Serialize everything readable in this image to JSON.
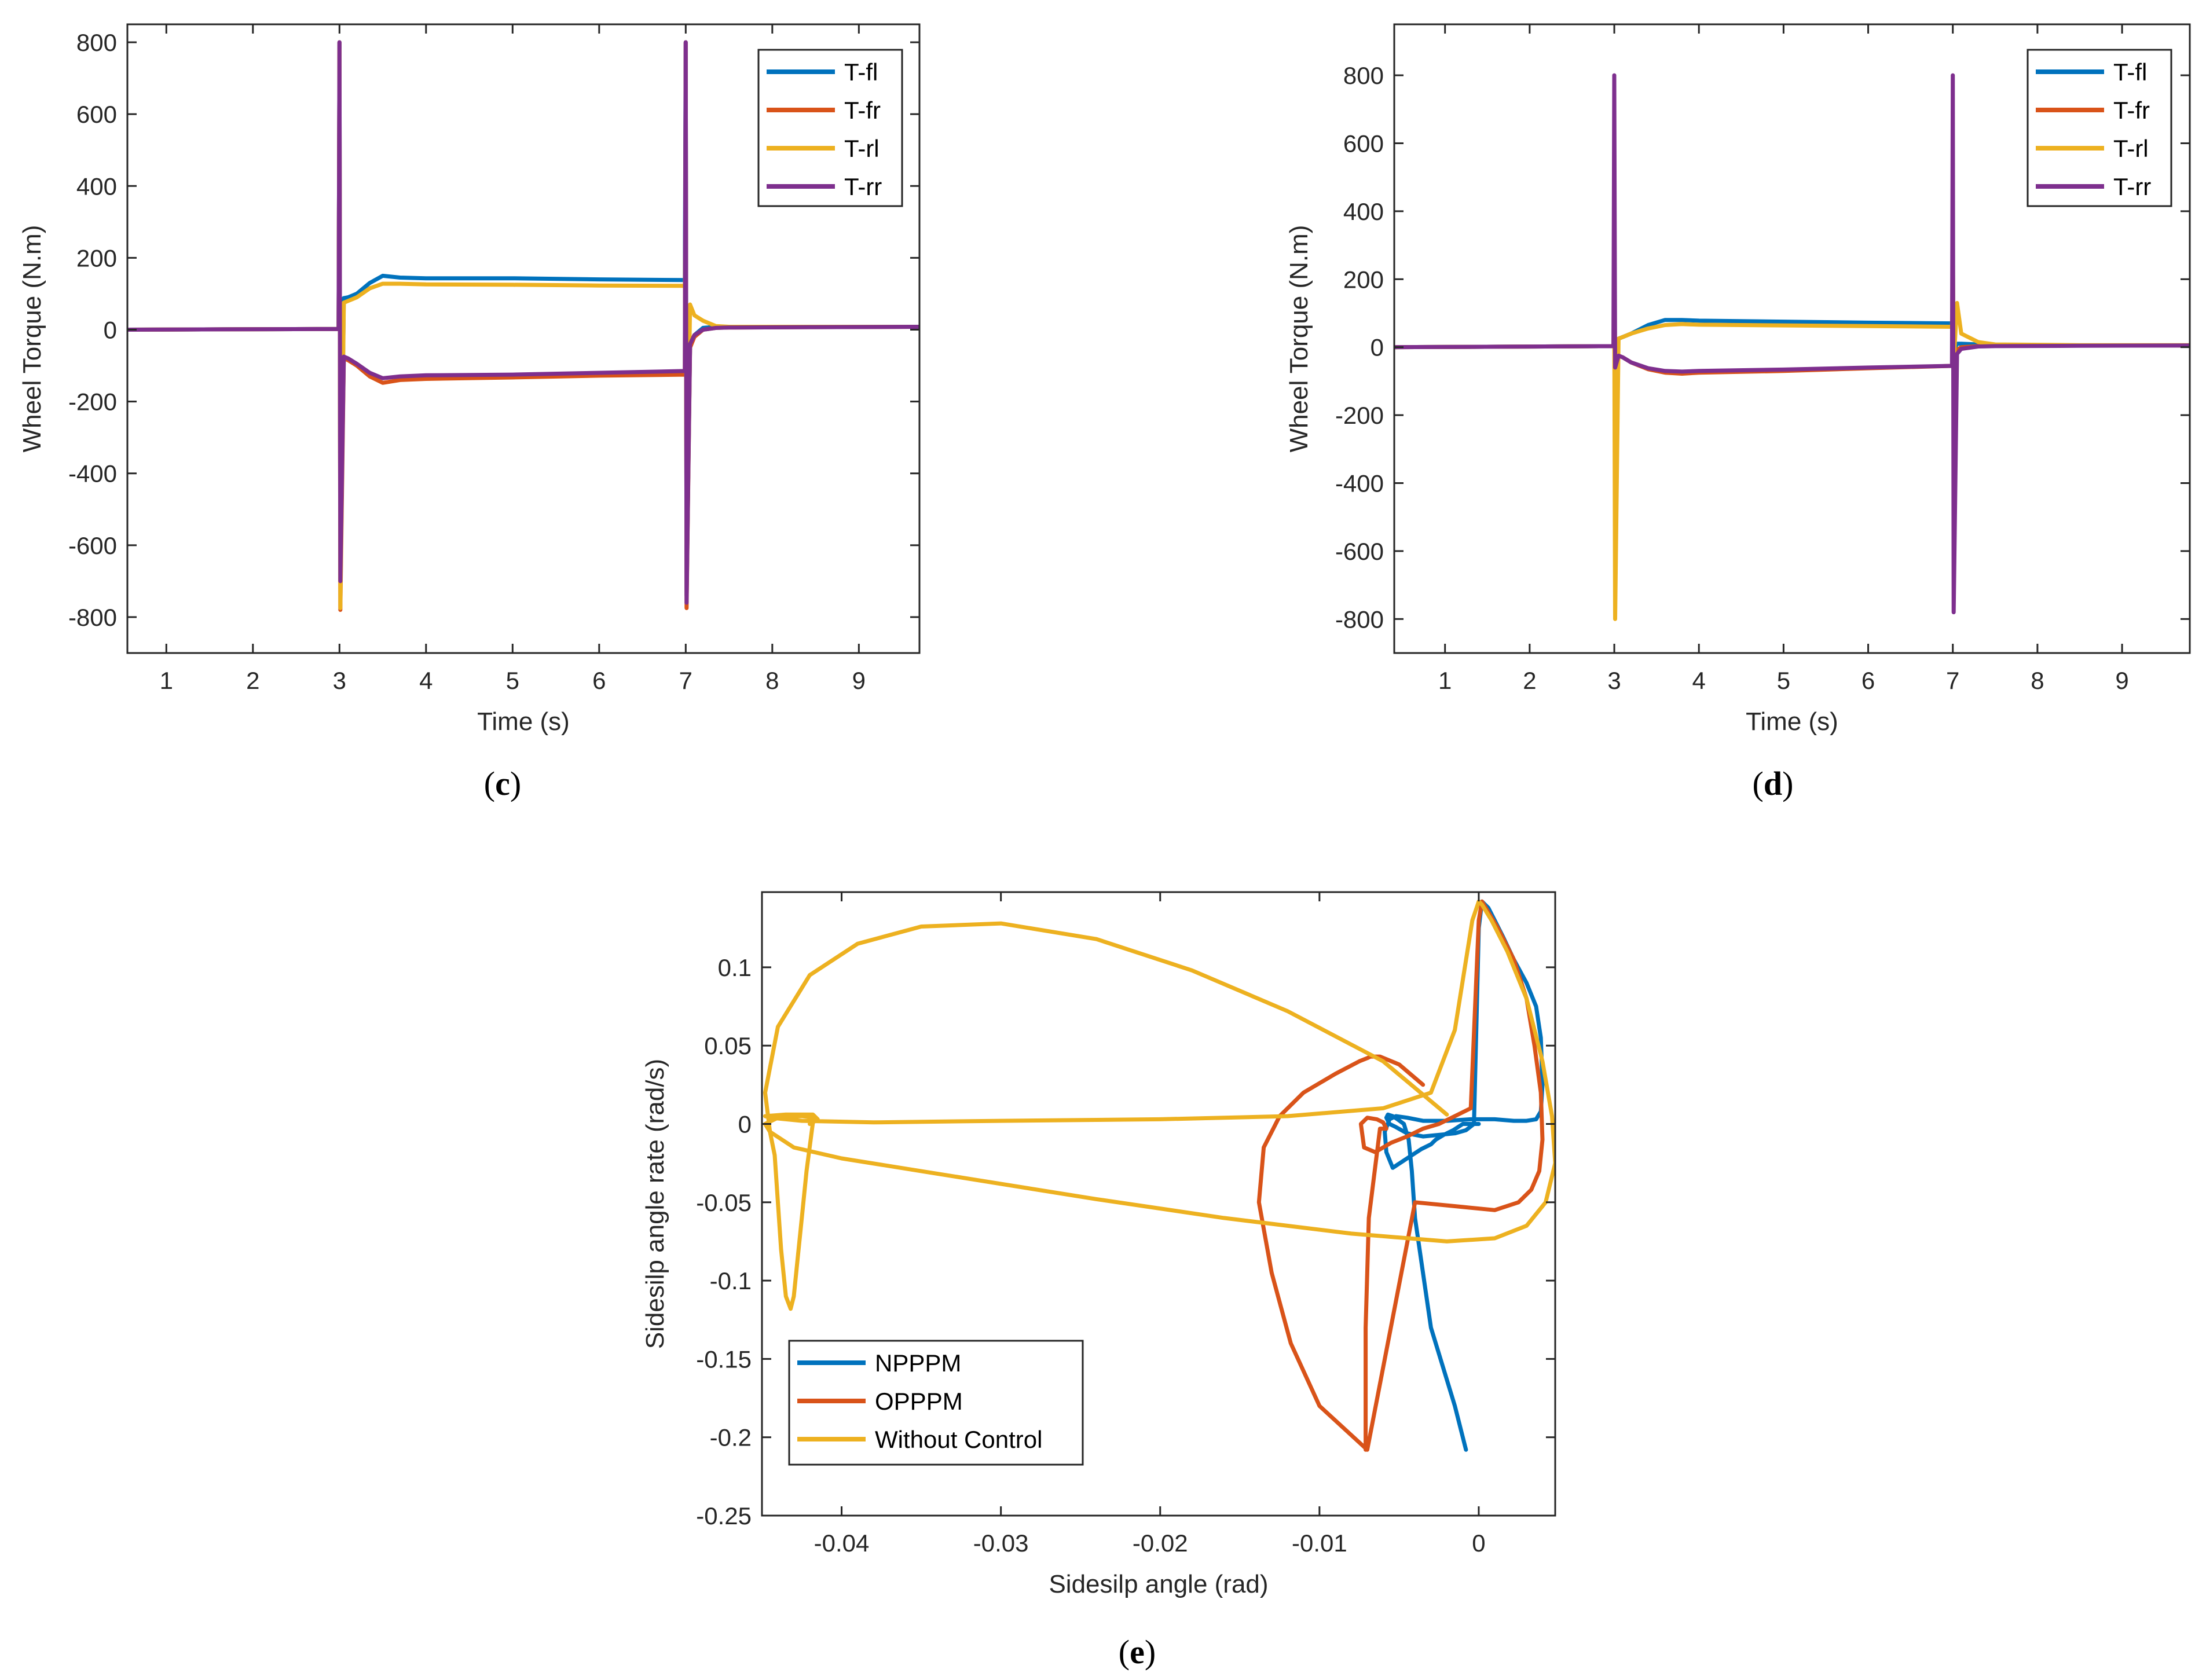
{
  "colors": {
    "blue": "#0072BD",
    "orange": "#D95319",
    "yellow": "#EDB120",
    "purple": "#7E2F8E",
    "axis": "#262626"
  },
  "chart_data": [
    {
      "id": "c",
      "panel_label": "c",
      "type": "line",
      "xlabel": "Time (s)",
      "ylabel": "Wheel Torque (N.m)",
      "xlim": [
        0.55,
        9.7
      ],
      "ylim": [
        -900,
        850
      ],
      "xticks": [
        1,
        2,
        3,
        4,
        5,
        6,
        7,
        8,
        9
      ],
      "yticks": [
        -800,
        -600,
        -400,
        -200,
        0,
        200,
        400,
        600,
        800
      ],
      "legend_position": "top-right",
      "series": [
        {
          "name": "T-fl",
          "color": "blue",
          "x": [
            0.55,
            2.99,
            3.0,
            3.01,
            3.05,
            3.1,
            3.2,
            3.35,
            3.5,
            3.7,
            4.0,
            5.0,
            6.0,
            6.99,
            7.0,
            7.01,
            7.05,
            7.1,
            7.2,
            7.35,
            7.5,
            8.5,
            9.7
          ],
          "y": [
            0,
            2,
            800,
            -700,
            88,
            90,
            100,
            130,
            150,
            145,
            143,
            143,
            140,
            138,
            800,
            -740,
            -40,
            -15,
            5,
            8,
            8,
            8,
            8
          ]
        },
        {
          "name": "T-fr",
          "color": "orange",
          "x": [
            0.55,
            2.99,
            3.0,
            3.01,
            3.05,
            3.1,
            3.2,
            3.35,
            3.5,
            3.7,
            4.0,
            5.0,
            6.0,
            6.99,
            7.0,
            7.01,
            7.05,
            7.1,
            7.2,
            7.35,
            7.5,
            8.5,
            9.7
          ],
          "y": [
            0,
            2,
            800,
            -780,
            -80,
            -85,
            -100,
            -130,
            -148,
            -140,
            -137,
            -133,
            -128,
            -125,
            800,
            -775,
            -50,
            -20,
            0,
            5,
            6,
            7,
            8
          ]
        },
        {
          "name": "T-rl",
          "color": "yellow",
          "x": [
            0.55,
            2.99,
            3.0,
            3.01,
            3.05,
            3.1,
            3.2,
            3.35,
            3.5,
            3.7,
            4.0,
            5.0,
            6.0,
            6.99,
            7.0,
            7.01,
            7.05,
            7.1,
            7.2,
            7.35,
            7.5,
            8.5,
            9.7
          ],
          "y": [
            0,
            2,
            780,
            -775,
            75,
            80,
            90,
            115,
            128,
            128,
            126,
            125,
            123,
            122,
            330,
            -600,
            70,
            40,
            25,
            10,
            8,
            8,
            8
          ]
        },
        {
          "name": "T-rr",
          "color": "purple",
          "x": [
            0.55,
            2.99,
            3.0,
            3.01,
            3.05,
            3.1,
            3.2,
            3.35,
            3.5,
            3.7,
            4.0,
            5.0,
            6.0,
            6.99,
            7.0,
            7.01,
            7.05,
            7.1,
            7.2,
            7.35,
            7.5,
            8.5,
            9.7
          ],
          "y": [
            0,
            2,
            800,
            -700,
            -75,
            -80,
            -95,
            -120,
            -135,
            -130,
            -127,
            -125,
            -120,
            -115,
            800,
            -760,
            -40,
            -15,
            0,
            5,
            6,
            7,
            8
          ]
        }
      ]
    },
    {
      "id": "d",
      "panel_label": "d",
      "type": "line",
      "xlabel": "Time (s)",
      "ylabel": "Wheel Torque (N.m)",
      "xlim": [
        0.4,
        9.8
      ],
      "ylim": [
        -900,
        950
      ],
      "xticks": [
        1,
        2,
        3,
        4,
        5,
        6,
        7,
        8,
        9
      ],
      "yticks": [
        -800,
        -600,
        -400,
        -200,
        0,
        200,
        400,
        600,
        800
      ],
      "legend_position": "top-right",
      "series": [
        {
          "name": "T-fl",
          "color": "blue",
          "x": [
            0.4,
            2.99,
            3.0,
            3.01,
            3.05,
            3.1,
            3.2,
            3.4,
            3.6,
            3.8,
            4.0,
            5.0,
            6.0,
            6.99,
            7.0,
            7.01,
            7.05,
            7.1,
            7.3,
            7.5,
            8.5,
            9.8
          ],
          "y": [
            0,
            3,
            20,
            10,
            25,
            30,
            40,
            65,
            80,
            80,
            78,
            75,
            72,
            70,
            60,
            -10,
            10,
            10,
            8,
            5,
            5,
            5
          ]
        },
        {
          "name": "T-fr",
          "color": "orange",
          "x": [
            0.4,
            2.99,
            3.0,
            3.01,
            3.05,
            3.1,
            3.2,
            3.4,
            3.6,
            3.8,
            4.0,
            5.0,
            6.0,
            6.99,
            7.0,
            7.01,
            7.05,
            7.1,
            7.3,
            7.5,
            8.5,
            9.8
          ],
          "y": [
            0,
            3,
            10,
            -60,
            -25,
            -30,
            -45,
            -65,
            -75,
            -78,
            -75,
            -70,
            -62,
            -55,
            -50,
            -30,
            -8,
            0,
            3,
            4,
            5,
            5
          ]
        },
        {
          "name": "T-rl",
          "color": "yellow",
          "x": [
            0.4,
            2.99,
            3.0,
            3.01,
            3.05,
            3.1,
            3.2,
            3.4,
            3.6,
            3.8,
            4.0,
            5.0,
            6.0,
            6.99,
            7.0,
            7.01,
            7.05,
            7.1,
            7.3,
            7.5,
            8.5,
            9.8
          ],
          "y": [
            0,
            3,
            100,
            -800,
            25,
            30,
            40,
            55,
            65,
            68,
            66,
            64,
            62,
            60,
            300,
            -50,
            130,
            40,
            15,
            8,
            6,
            6
          ]
        },
        {
          "name": "T-rr",
          "color": "purple",
          "x": [
            0.4,
            2.99,
            3.0,
            3.01,
            3.05,
            3.1,
            3.2,
            3.4,
            3.6,
            3.8,
            4.0,
            5.0,
            6.0,
            6.99,
            7.0,
            7.01,
            7.05,
            7.1,
            7.3,
            7.5,
            8.5,
            9.8
          ],
          "y": [
            0,
            3,
            800,
            -60,
            -25,
            -30,
            -45,
            -62,
            -70,
            -72,
            -70,
            -66,
            -60,
            -55,
            800,
            -780,
            -20,
            -5,
            2,
            3,
            4,
            5
          ]
        }
      ]
    },
    {
      "id": "e",
      "panel_label": "e",
      "type": "line",
      "xlabel": "Sidesilp angle (rad)",
      "ylabel": "Sidesilp angle rate (rad/s)",
      "xlim": [
        -0.045,
        0.0048
      ],
      "ylim": [
        -0.25,
        0.148
      ],
      "xticks": [
        -0.04,
        -0.03,
        -0.02,
        -0.01,
        0
      ],
      "xtick_labels": [
        "-0.04",
        "-0.03",
        "-0.02",
        "-0.01",
        "0"
      ],
      "yticks": [
        -0.25,
        -0.2,
        -0.15,
        -0.1,
        -0.05,
        0,
        0.05,
        0.1
      ],
      "ytick_labels": [
        "-0.25",
        "-0.2",
        "-0.15",
        "-0.1",
        "-0.05",
        "0",
        "0.05",
        "0.1"
      ],
      "legend_position": "bottom-left",
      "series": [
        {
          "name": "NPPPM",
          "color": "blue",
          "x": [
            0,
            -0.0003,
            -0.0006,
            -0.0009,
            -0.001,
            -0.0016,
            -0.0022,
            -0.0027,
            -0.003,
            -0.0036,
            -0.0042,
            -0.0048,
            -0.0054,
            -0.0058,
            -0.0059,
            -0.0056,
            -0.0052,
            -0.0045,
            -0.0035,
            -0.002,
            -0.0005,
            0.001,
            0.0022,
            0.003,
            0.0036,
            0.0039,
            0.004,
            0.0039,
            0.0036,
            0.003,
            0.0022,
            0.0015,
            0.001,
            0.0006,
            0.0002,
            0,
            -0.0003,
            -0.0008,
            -0.0015,
            -0.0025,
            -0.0035,
            -0.0045,
            -0.0052,
            -0.0056,
            -0.0058,
            -0.0057,
            -0.0054,
            -0.0051,
            -0.0047,
            -0.0044,
            -0.0042,
            -0.004,
            -0.003,
            -0.0015,
            -0.0008
          ],
          "y": [
            0,
            0,
            0,
            0,
            0,
            -0.004,
            -0.007,
            -0.01,
            -0.013,
            -0.016,
            -0.02,
            -0.024,
            -0.028,
            -0.018,
            -0.005,
            0.003,
            0.005,
            0.004,
            0.002,
            0.002,
            0.003,
            0.003,
            0.002,
            0.002,
            0.003,
            0.008,
            0.025,
            0.055,
            0.075,
            0.09,
            0.105,
            0.12,
            0.13,
            0.138,
            0.142,
            0.125,
            0.0,
            -0.004,
            -0.006,
            -0.007,
            -0.008,
            -0.006,
            -0.002,
            0.0,
            0.004,
            0.006,
            0.005,
            0.003,
            0.0,
            -0.01,
            -0.03,
            -0.06,
            -0.13,
            -0.18,
            -0.208
          ]
        },
        {
          "name": "OPPPM",
          "color": "orange",
          "x": [
            -0.0035,
            -0.005,
            -0.0062,
            -0.0068,
            -0.007,
            -0.0075,
            -0.009,
            -0.011,
            -0.0125,
            -0.0135,
            -0.0138,
            -0.013,
            -0.0118,
            -0.01,
            -0.007,
            -0.004,
            -0.001,
            0.001,
            0.0025,
            0.0033,
            0.0038,
            0.004,
            0.0039,
            0.0035,
            0.003,
            0.0022,
            0.0012,
            0.0005,
            0.0002,
            0,
            -0.0005,
            -0.0015,
            -0.0025,
            -0.0035,
            -0.0045,
            -0.0055,
            -0.0065,
            -0.0072,
            -0.0074,
            -0.007,
            -0.0064,
            -0.006,
            -0.0058,
            -0.0062,
            -0.0069,
            -0.0071,
            -0.0071
          ],
          "y": [
            0.025,
            0.038,
            0.043,
            0.043,
            0.042,
            0.04,
            0.032,
            0.02,
            0.005,
            -0.015,
            -0.05,
            -0.095,
            -0.14,
            -0.18,
            -0.208,
            -0.05,
            -0.053,
            -0.055,
            -0.05,
            -0.042,
            -0.03,
            -0.01,
            0.02,
            0.05,
            0.08,
            0.105,
            0.125,
            0.137,
            0.142,
            0.13,
            0.01,
            0.005,
            0.0,
            -0.003,
            -0.008,
            -0.012,
            -0.018,
            -0.015,
            0.0,
            0.004,
            0.003,
            0.001,
            -0.003,
            -0.003,
            -0.06,
            -0.13,
            -0.208
          ]
        },
        {
          "name": "Without Control",
          "color": "yellow",
          "x": [
            -0.002,
            -0.006,
            -0.012,
            -0.018,
            -0.024,
            -0.03,
            -0.035,
            -0.039,
            -0.042,
            -0.044,
            -0.0448,
            -0.0445,
            -0.043,
            -0.04,
            -0.032,
            -0.024,
            -0.016,
            -0.008,
            -0.002,
            0.001,
            0.003,
            0.0042,
            0.0048,
            0.0046,
            0.004,
            0.003,
            0.0018,
            0.0008,
            0.0002,
            0,
            -0.0004,
            -0.0015,
            -0.003,
            -0.006,
            -0.012,
            -0.02,
            -0.03,
            -0.038,
            -0.0425,
            -0.0445,
            -0.0448,
            -0.0435,
            -0.0418,
            -0.0415,
            -0.0418,
            -0.0422,
            -0.0425,
            -0.0428,
            -0.043,
            -0.0432,
            -0.0435,
            -0.0438,
            -0.044,
            -0.0442,
            -0.0445,
            -0.0448,
            -0.044,
            -0.0425,
            -0.0417,
            -0.0418,
            -0.042
          ],
          "y": [
            0.006,
            0.04,
            0.072,
            0.098,
            0.118,
            0.128,
            0.126,
            0.115,
            0.095,
            0.062,
            0.02,
            -0.005,
            -0.015,
            -0.022,
            -0.035,
            -0.048,
            -0.06,
            -0.07,
            -0.075,
            -0.073,
            -0.065,
            -0.05,
            -0.025,
            0.005,
            0.04,
            0.08,
            0.11,
            0.13,
            0.14,
            0.142,
            0.13,
            0.06,
            0.02,
            0.01,
            0.005,
            0.003,
            0.002,
            0.001,
            0.002,
            0.004,
            0.005,
            0.006,
            0.006,
            0.003,
            0.001,
            -0.03,
            -0.06,
            -0.09,
            -0.11,
            -0.118,
            -0.11,
            -0.08,
            -0.05,
            -0.02,
            -0.005,
            0.0,
            0.004,
            0.005,
            0.004,
            0.002,
            0.0
          ]
        }
      ]
    }
  ]
}
